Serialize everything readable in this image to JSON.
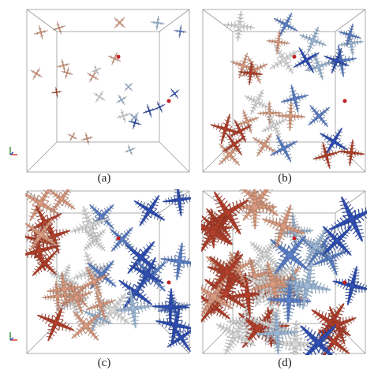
{
  "figure": {
    "panels": [
      {
        "label": "(a)",
        "stage": "sparse"
      },
      {
        "label": "(b)",
        "stage": "medium"
      },
      {
        "label": "(c)",
        "stage": "dense"
      },
      {
        "label": "(d)",
        "stage": "full"
      }
    ],
    "colors": {
      "dark_red": "#b2402c",
      "light_salmon": "#d99a7f",
      "pale": "#d8d8d8",
      "light_blue": "#9db8d6",
      "mid_blue": "#5b7fc6",
      "dark_blue": "#2f4fb3",
      "accent_red": "#c21f1f",
      "box_line": "#9a9a9a"
    },
    "axis_triad": {
      "x_color": "#d23a2a",
      "y_color": "#3a9a3a",
      "z_color": "#3552c8"
    }
  }
}
